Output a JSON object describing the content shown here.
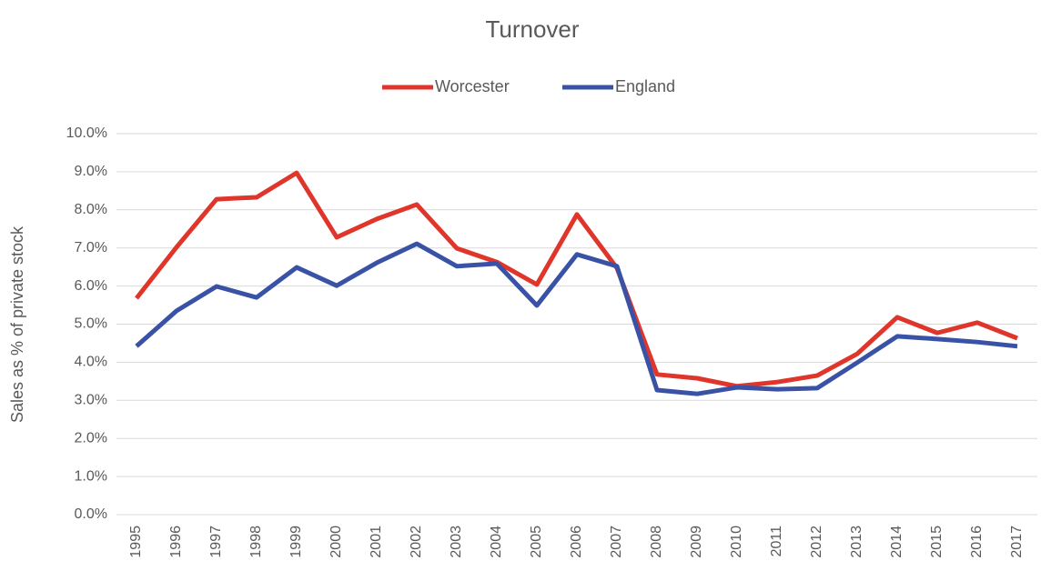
{
  "chart_data": {
    "type": "line",
    "title": "Turnover",
    "ylabel": "Sales as % of private stock",
    "categories": [
      "1995",
      "1996",
      "1997",
      "1998",
      "1999",
      "2000",
      "2001",
      "2002",
      "2003",
      "2004",
      "2005",
      "2006",
      "2007",
      "2008",
      "2009",
      "2010",
      "2011",
      "2012",
      "2013",
      "2014",
      "2015",
      "2016",
      "2017"
    ],
    "series": [
      {
        "name": "Worcester",
        "color": "#e0352b",
        "values": [
          5.68,
          7.02,
          8.28,
          8.33,
          8.97,
          7.28,
          7.76,
          8.14,
          6.99,
          6.63,
          6.04,
          7.88,
          6.47,
          3.68,
          3.58,
          3.37,
          3.48,
          3.65,
          4.22,
          5.18,
          4.77,
          5.04,
          4.63
        ]
      },
      {
        "name": "England",
        "color": "#3a52a5",
        "values": [
          4.42,
          5.35,
          5.99,
          5.7,
          6.49,
          6.01,
          6.61,
          7.11,
          6.52,
          6.59,
          5.49,
          6.83,
          6.52,
          3.27,
          3.17,
          3.34,
          3.29,
          3.32,
          3.99,
          4.68,
          4.61,
          4.53,
          4.42
        ]
      }
    ],
    "ylim": [
      0,
      10
    ],
    "yticks": [
      {
        "value": 0,
        "label": "0.0%"
      },
      {
        "value": 1,
        "label": "1.0%"
      },
      {
        "value": 2,
        "label": "2.0%"
      },
      {
        "value": 3,
        "label": "3.0%"
      },
      {
        "value": 4,
        "label": "4.0%"
      },
      {
        "value": 5,
        "label": "5.0%"
      },
      {
        "value": 6,
        "label": "6.0%"
      },
      {
        "value": 7,
        "label": "7.0%"
      },
      {
        "value": 8,
        "label": "8.0%"
      },
      {
        "value": 9,
        "label": "9.0%"
      },
      {
        "value": 10,
        "label": "10.0%"
      }
    ],
    "grid": true,
    "legend": "top"
  }
}
